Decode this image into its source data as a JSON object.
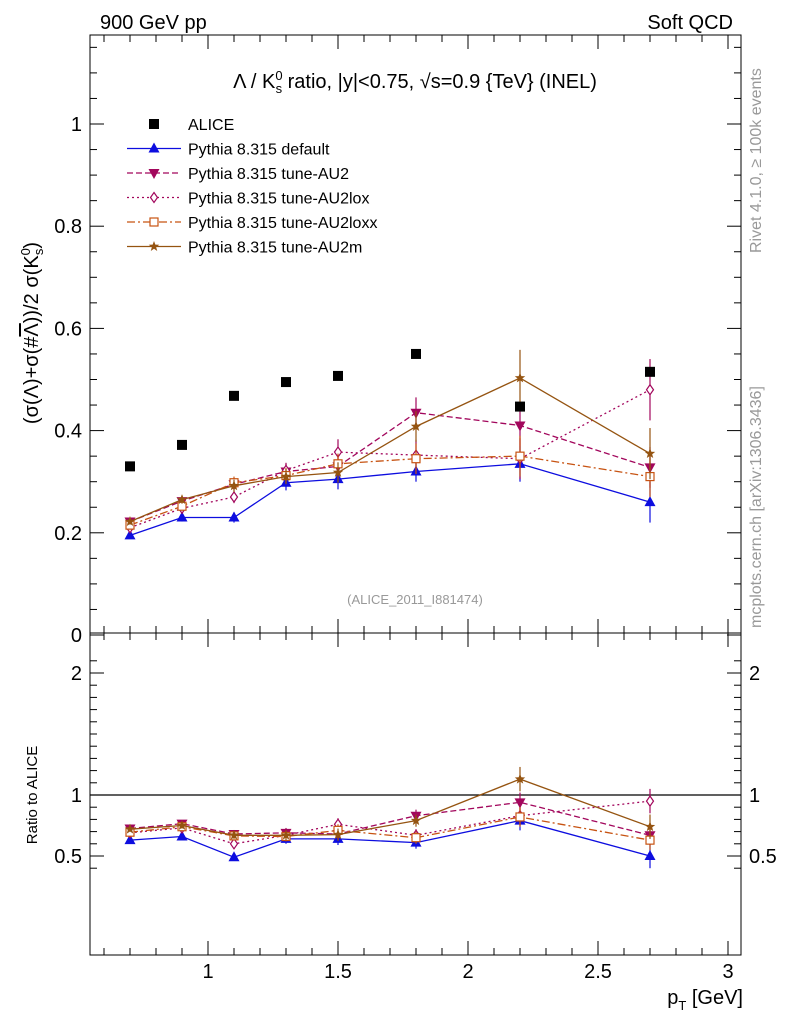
{
  "header": {
    "left": "900 GeV pp",
    "right": "Soft QCD"
  },
  "side_labels": {
    "rivet": "Rivet 4.1.0, ≥ 100k events",
    "mcplots": "mcplots.cern.ch [arXiv:1306.3436]"
  },
  "chart_data": [
    {
      "id": "main",
      "type": "scatter",
      "title": "Λ / K⁰s ratio, |y|<0.75, √s=0.9 {TeV} (INEL)",
      "analysis_tag": "(ALICE_2011_I881474)",
      "ylabel": "(σ(Λ)+σ(#Λ))/2 σ(K⁰s)",
      "xlabel": "pT [GeV]",
      "xlim": [
        0.55,
        3.05
      ],
      "ylim": [
        0,
        1.18
      ],
      "x_ticks": [
        1,
        1.5,
        2,
        2.5,
        3
      ],
      "x_tick_labels": [
        "1",
        "1.5",
        "2",
        "2.5",
        "3"
      ],
      "y_ticks": [
        0,
        0.2,
        0.4,
        0.6,
        0.8,
        1
      ],
      "y_tick_labels": [
        "0",
        "0.2",
        "0.4",
        "0.6",
        "0.8",
        "1"
      ],
      "x": [
        0.7,
        0.9,
        1.1,
        1.3,
        1.5,
        1.8,
        2.2,
        2.7
      ],
      "legend_position": "top-left",
      "series": [
        {
          "name": "ALICE",
          "color": "#000000",
          "marker": "filled-square",
          "line": "none",
          "values": [
            0.33,
            0.372,
            0.468,
            0.495,
            0.507,
            0.55,
            0.447,
            0.515
          ],
          "errors": [
            0,
            0,
            0,
            0,
            0,
            0,
            0,
            0
          ]
        },
        {
          "name": "Pythia 8.315 default",
          "color": "#0d0ddf",
          "marker": "filled-triangle-up",
          "line": "solid",
          "values": [
            0.195,
            0.23,
            0.23,
            0.298,
            0.305,
            0.32,
            0.335,
            0.26
          ],
          "errors": [
            0.005,
            0.008,
            0.01,
            0.015,
            0.02,
            0.02,
            0.035,
            0.04
          ]
        },
        {
          "name": "Pythia 8.315 tune-AU2",
          "color": "#a2065c",
          "marker": "filled-triangle-down",
          "line": "dashed",
          "values": [
            0.222,
            0.262,
            0.295,
            0.32,
            0.33,
            0.435,
            0.41,
            0.328
          ],
          "errors": [
            0.006,
            0.008,
            0.012,
            0.015,
            0.02,
            0.03,
            0.04,
            0.04
          ]
        },
        {
          "name": "Pythia 8.315 tune-AU2lox",
          "color": "#a2065c",
          "marker": "open-diamond",
          "line": "dotted",
          "values": [
            0.21,
            0.248,
            0.27,
            0.322,
            0.358,
            0.352,
            0.345,
            0.48
          ],
          "errors": [
            0.006,
            0.008,
            0.012,
            0.015,
            0.025,
            0.03,
            0.04,
            0.06
          ]
        },
        {
          "name": "Pythia 8.315 tune-AU2loxx",
          "color": "#c75312",
          "marker": "open-square",
          "line": "dash-dot",
          "values": [
            0.215,
            0.252,
            0.298,
            0.312,
            0.335,
            0.345,
            0.35,
            0.31
          ],
          "errors": [
            0.006,
            0.008,
            0.012,
            0.015,
            0.02,
            0.03,
            0.04,
            0.04
          ]
        },
        {
          "name": "Pythia 8.315 tune-AU2m",
          "color": "#955411",
          "marker": "filled-star",
          "line": "solid",
          "values": [
            0.222,
            0.265,
            0.292,
            0.31,
            0.318,
            0.408,
            0.503,
            0.355
          ],
          "errors": [
            0.006,
            0.008,
            0.012,
            0.015,
            0.02,
            0.03,
            0.055,
            0.05
          ]
        }
      ]
    },
    {
      "id": "ratio",
      "type": "scatter",
      "ylabel": "Ratio to ALICE",
      "xlabel": "pT [GeV]",
      "xlim": [
        0.55,
        3.05
      ],
      "ylim": [
        0.34,
        2.28
      ],
      "y_ticks": [
        0.5,
        1,
        2
      ],
      "y_tick_labels": [
        "0.5",
        "1",
        "2"
      ],
      "reference_line": 1,
      "x": [
        0.7,
        0.9,
        1.1,
        1.3,
        1.5,
        1.8,
        2.2,
        2.7
      ],
      "series": [
        {
          "name": "Pythia 8.315 default",
          "values": [
            0.63,
            0.66,
            0.49,
            0.64,
            0.64,
            0.61,
            0.79,
            0.5
          ],
          "errors": [
            0.02,
            0.025,
            0.03,
            0.04,
            0.05,
            0.05,
            0.08,
            0.1
          ]
        },
        {
          "name": "Pythia 8.315 tune-AU2",
          "values": [
            0.725,
            0.765,
            0.68,
            0.69,
            0.68,
            0.83,
            0.94,
            0.67
          ],
          "errors": [
            0.02,
            0.025,
            0.03,
            0.04,
            0.05,
            0.05,
            0.08,
            0.08
          ]
        },
        {
          "name": "Pythia 8.315 tune-AU2lox",
          "values": [
            0.69,
            0.73,
            0.6,
            0.67,
            0.76,
            0.67,
            0.83,
            0.95
          ],
          "errors": [
            0.02,
            0.025,
            0.03,
            0.04,
            0.05,
            0.05,
            0.08,
            0.1
          ]
        },
        {
          "name": "Pythia 8.315 tune-AU2loxx",
          "values": [
            0.695,
            0.74,
            0.665,
            0.66,
            0.71,
            0.65,
            0.82,
            0.63
          ],
          "errors": [
            0.02,
            0.025,
            0.03,
            0.04,
            0.05,
            0.05,
            0.08,
            0.08
          ]
        },
        {
          "name": "Pythia 8.315 tune-AU2m",
          "values": [
            0.72,
            0.75,
            0.67,
            0.67,
            0.675,
            0.79,
            1.13,
            0.74
          ],
          "errors": [
            0.02,
            0.025,
            0.03,
            0.04,
            0.05,
            0.05,
            0.1,
            0.1
          ]
        }
      ]
    }
  ]
}
